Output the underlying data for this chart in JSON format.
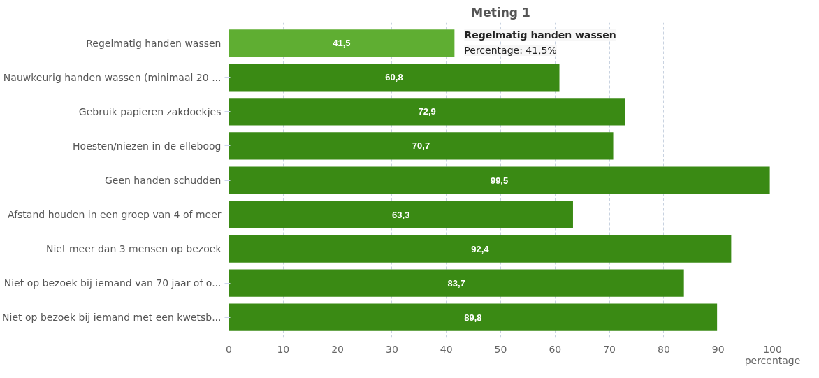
{
  "chart_data": {
    "type": "bar",
    "orientation": "horizontal",
    "title": "Meting 1",
    "xlabel": "percentage",
    "categories": [
      "Regelmatig handen wassen",
      "Nauwkeurig handen wassen (minimaal 20 ...",
      "Gebruik papieren zakdoekjes",
      "Hoesten/niezen in de elleboog",
      "Geen handen schudden",
      "Afstand houden in een groep van 4 of meer",
      "Niet meer dan 3 mensen op bezoek",
      "Niet op bezoek bij iemand van 70 jaar of o...",
      "Niet op bezoek bij iemand met een kwetsb..."
    ],
    "values": [
      41.5,
      60.8,
      72.9,
      70.7,
      99.5,
      63.3,
      92.4,
      83.7,
      89.8
    ],
    "value_labels": [
      "41,5",
      "60,8",
      "72,9",
      "70,7",
      "99,5",
      "63,3",
      "92,4",
      "83,7",
      "89,8"
    ],
    "colors": [
      "#5fae32",
      "#3a8a14",
      "#3a8a14",
      "#3a8a14",
      "#3a8a14",
      "#3a8a14",
      "#3a8a14",
      "#3a8a14",
      "#3a8a14"
    ],
    "xlim": [
      0,
      100
    ],
    "xticks": [
      0,
      10,
      20,
      30,
      40,
      50,
      60,
      70,
      80,
      90,
      100
    ],
    "grid": "x",
    "annotations": [
      {
        "text": "Regelmatig handen wassen",
        "x": 41.5,
        "y": "Regelmatig handen wassen"
      },
      {
        "text": "Percentage: 41,5%",
        "x": 41.5,
        "y": "Regelmatig handen wassen"
      }
    ]
  }
}
